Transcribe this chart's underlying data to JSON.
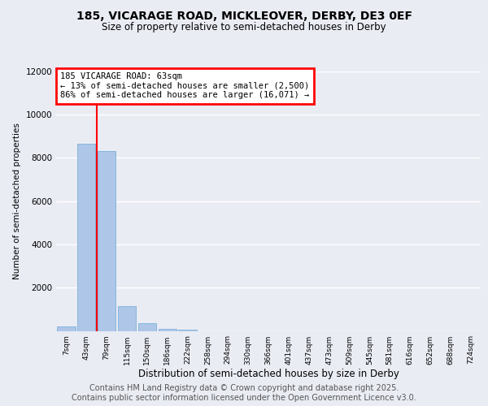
{
  "title_line1": "185, VICARAGE ROAD, MICKLEOVER, DERBY, DE3 0EF",
  "title_line2": "Size of property relative to semi-detached houses in Derby",
  "xlabel": "Distribution of semi-detached houses by size in Derby",
  "ylabel": "Number of semi-detached properties",
  "categories": [
    "7sqm",
    "43sqm",
    "79sqm",
    "115sqm",
    "150sqm",
    "186sqm",
    "222sqm",
    "258sqm",
    "294sqm",
    "330sqm",
    "366sqm",
    "401sqm",
    "437sqm",
    "473sqm",
    "509sqm",
    "545sqm",
    "581sqm",
    "616sqm",
    "652sqm",
    "688sqm",
    "724sqm"
  ],
  "values": [
    200,
    8650,
    8300,
    1150,
    340,
    110,
    50,
    0,
    0,
    0,
    0,
    0,
    0,
    0,
    0,
    0,
    0,
    0,
    0,
    0,
    0
  ],
  "bar_color": "#aec6e8",
  "bar_edge_color": "#6aaad4",
  "vline_x": 1.5,
  "vline_color": "red",
  "annotation_box_text": "185 VICARAGE ROAD: 63sqm\n← 13% of semi-detached houses are smaller (2,500)\n86% of semi-detached houses are larger (16,071) →",
  "annotation_box_color": "red",
  "annotation_text_fontsize": 7.5,
  "ylim": [
    0,
    12000
  ],
  "yticks": [
    0,
    2000,
    4000,
    6000,
    8000,
    10000,
    12000
  ],
  "bg_color": "#eaecf4",
  "plot_bg_color": "#eaecf4",
  "grid_color": "white",
  "footer_line1": "Contains HM Land Registry data © Crown copyright and database right 2025.",
  "footer_line2": "Contains public sector information licensed under the Open Government Licence v3.0.",
  "footer_fontsize": 7,
  "title1_fontsize": 10,
  "title2_fontsize": 8.5
}
